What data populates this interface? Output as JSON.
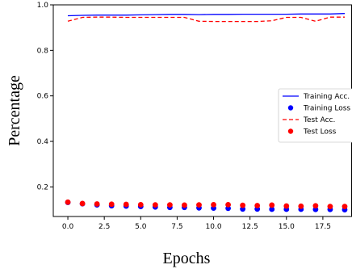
{
  "chart_data": {
    "type": "line",
    "xlabel": "Epochs",
    "ylabel": "Percentage",
    "xlim": [
      -1,
      19.5
    ],
    "ylim": [
      0.07,
      1.0
    ],
    "xticks": [
      "0.0",
      "2.5",
      "5.0",
      "7.5",
      "10.0",
      "12.5",
      "15.0",
      "17.5"
    ],
    "yticks": [
      "0.2",
      "0.4",
      "0.6",
      "0.8",
      "1.0"
    ],
    "grid": false,
    "legend_position": "right",
    "x": [
      0,
      1,
      2,
      3,
      4,
      5,
      6,
      7,
      8,
      9,
      10,
      11,
      12,
      13,
      14,
      15,
      16,
      17,
      18,
      19
    ],
    "series": [
      {
        "name": "Training Acc.",
        "kind": "line",
        "style": "solid",
        "color": "#0000ff",
        "values": [
          0.952,
          0.954,
          0.955,
          0.955,
          0.955,
          0.956,
          0.957,
          0.958,
          0.958,
          0.957,
          0.958,
          0.958,
          0.959,
          0.959,
          0.959,
          0.959,
          0.96,
          0.96,
          0.96,
          0.962
        ]
      },
      {
        "name": "Training Loss",
        "kind": "scatter",
        "color": "#0000ff",
        "values": [
          0.132,
          0.126,
          0.121,
          0.117,
          0.116,
          0.114,
          0.112,
          0.11,
          0.11,
          0.108,
          0.107,
          0.106,
          0.103,
          0.103,
          0.102,
          0.102,
          0.102,
          0.101,
          0.101,
          0.1
        ]
      },
      {
        "name": "Test Acc.",
        "kind": "line",
        "style": "dashed",
        "color": "#ff0000",
        "values": [
          0.928,
          0.945,
          0.946,
          0.946,
          0.945,
          0.945,
          0.945,
          0.945,
          0.945,
          0.928,
          0.927,
          0.927,
          0.927,
          0.927,
          0.93,
          0.945,
          0.945,
          0.928,
          0.946,
          0.946
        ]
      },
      {
        "name": "Test Loss",
        "kind": "scatter",
        "color": "#ff0000",
        "values": [
          0.133,
          0.127,
          0.125,
          0.124,
          0.123,
          0.122,
          0.121,
          0.121,
          0.12,
          0.121,
          0.122,
          0.122,
          0.119,
          0.118,
          0.12,
          0.116,
          0.115,
          0.117,
          0.114,
          0.114
        ]
      }
    ]
  }
}
